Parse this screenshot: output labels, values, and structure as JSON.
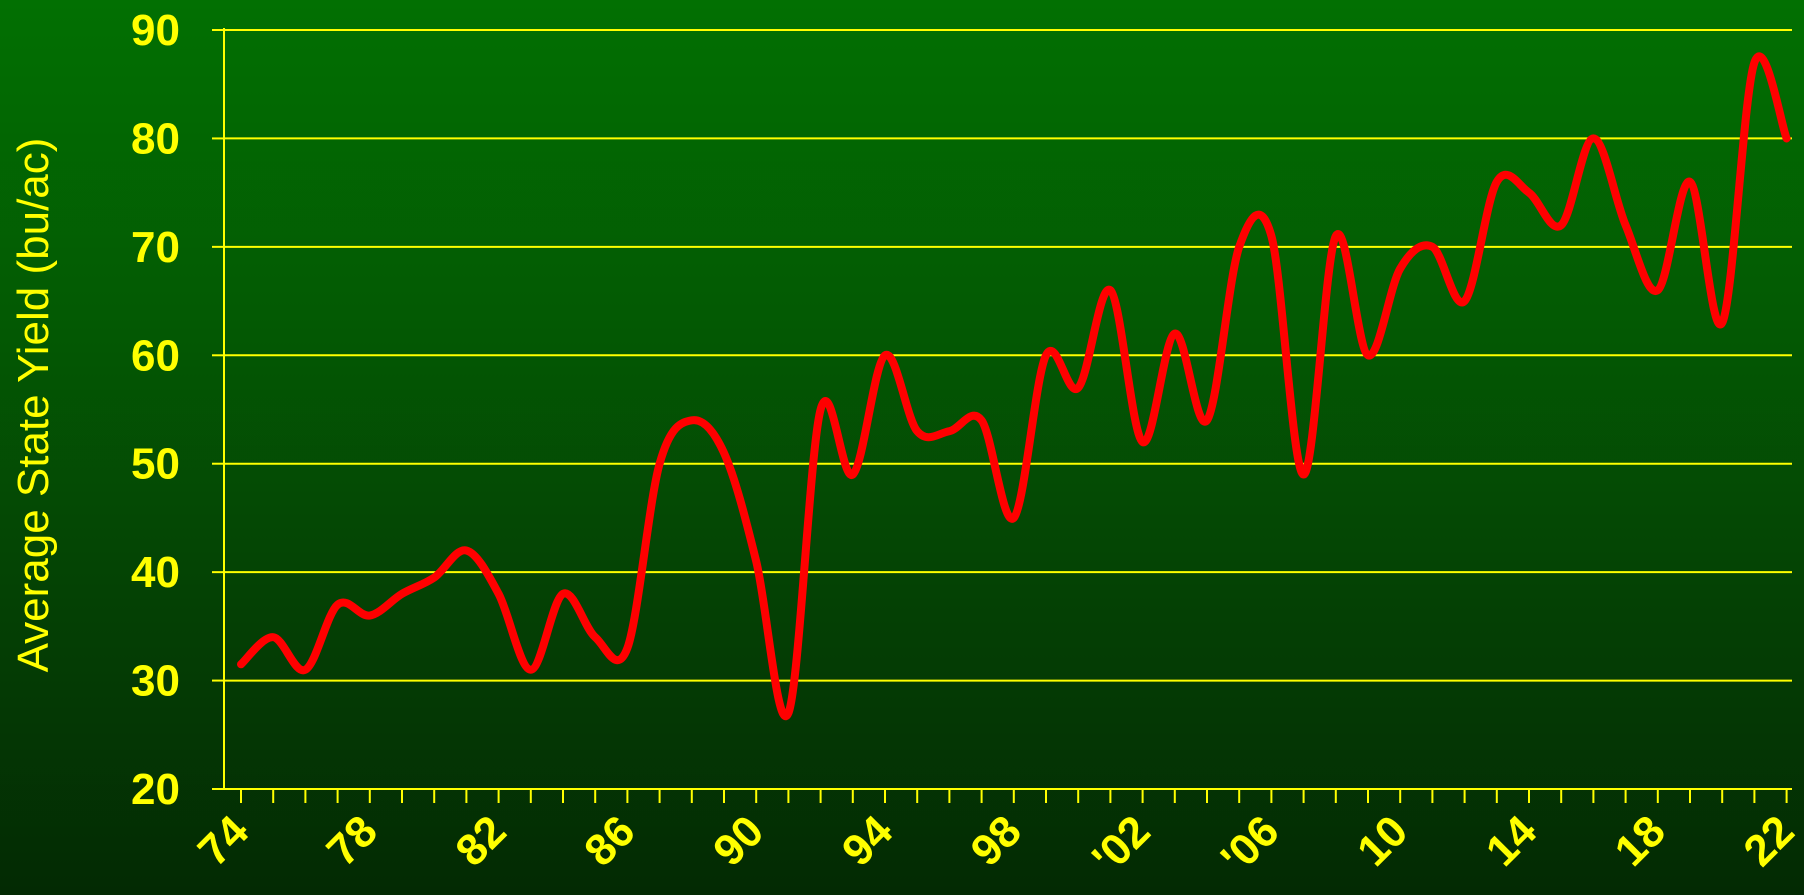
{
  "chart_data": {
    "type": "line",
    "title": "",
    "xlabel": "",
    "ylabel": "Average State Yield (bu/ac)",
    "ylim": [
      20,
      90
    ],
    "yticks": [
      20,
      30,
      40,
      50,
      60,
      70,
      80,
      90
    ],
    "xlim": [
      1974,
      2022
    ],
    "xtick_labels": [
      {
        "year": 1974,
        "label": "74"
      },
      {
        "year": 1978,
        "label": "78"
      },
      {
        "year": 1982,
        "label": "82"
      },
      {
        "year": 1986,
        "label": "86"
      },
      {
        "year": 1990,
        "label": "90"
      },
      {
        "year": 1994,
        "label": "94"
      },
      {
        "year": 1998,
        "label": "98"
      },
      {
        "year": 2002,
        "label": "'02"
      },
      {
        "year": 2006,
        "label": "'06"
      },
      {
        "year": 2010,
        "label": "10"
      },
      {
        "year": 2014,
        "label": "14"
      },
      {
        "year": 2018,
        "label": "18"
      },
      {
        "year": 2022,
        "label": "22"
      }
    ],
    "grid": true,
    "colors": {
      "line": "#ff0000",
      "axis": "#ffff00",
      "grid": "#ffff00"
    },
    "series": [
      {
        "x": [
          1974,
          1975,
          1976,
          1977,
          1978,
          1979,
          1980,
          1981,
          1982,
          1983,
          1984,
          1985,
          1986,
          1987,
          1988,
          1989,
          1990,
          1991,
          1992,
          1993,
          1994,
          1995,
          1996,
          1997,
          1998,
          1999,
          2000,
          2001,
          2002,
          2003,
          2004,
          2005,
          2006,
          2007,
          2008,
          2009,
          2010,
          2011,
          2012,
          2013,
          2014,
          2015,
          2016,
          2017,
          2018,
          2019,
          2020,
          2021,
          2022
        ],
        "y": [
          31.5,
          34,
          31,
          37,
          36,
          38,
          39.5,
          42,
          38,
          31,
          38,
          34,
          33,
          50,
          54,
          51,
          41,
          27,
          55,
          49,
          60,
          53,
          53,
          54,
          45,
          60,
          57,
          66,
          52,
          62,
          54,
          70,
          71,
          49,
          71,
          60,
          68,
          70,
          65,
          76,
          75,
          72,
          80,
          72,
          66,
          76,
          63,
          87,
          80
        ]
      }
    ]
  }
}
